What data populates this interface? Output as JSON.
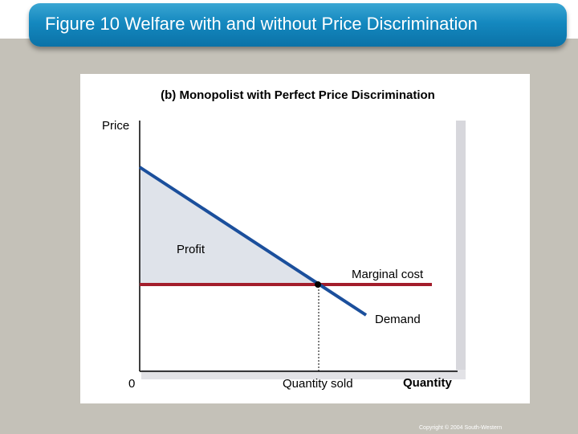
{
  "title": "Figure 10 Welfare with and without Price Discrimination",
  "panel_title": "(b) Monopolist with Perfect Price Discrimination",
  "labels": {
    "y_axis": "Price",
    "x_axis": "Quantity",
    "origin": "0",
    "quantity_sold": "Quantity sold",
    "profit": "Profit",
    "marginal_cost": "Marginal cost",
    "demand": "Demand"
  },
  "copyright": "Copyright © 2004 South-Western",
  "colors": {
    "title_bar": "#1488bf",
    "demand_line": "#1b4f9c",
    "marginal_cost_line": "#a31d2b",
    "profit_area": "#dfe3ea",
    "slide_background": "#c4c1b8"
  }
}
